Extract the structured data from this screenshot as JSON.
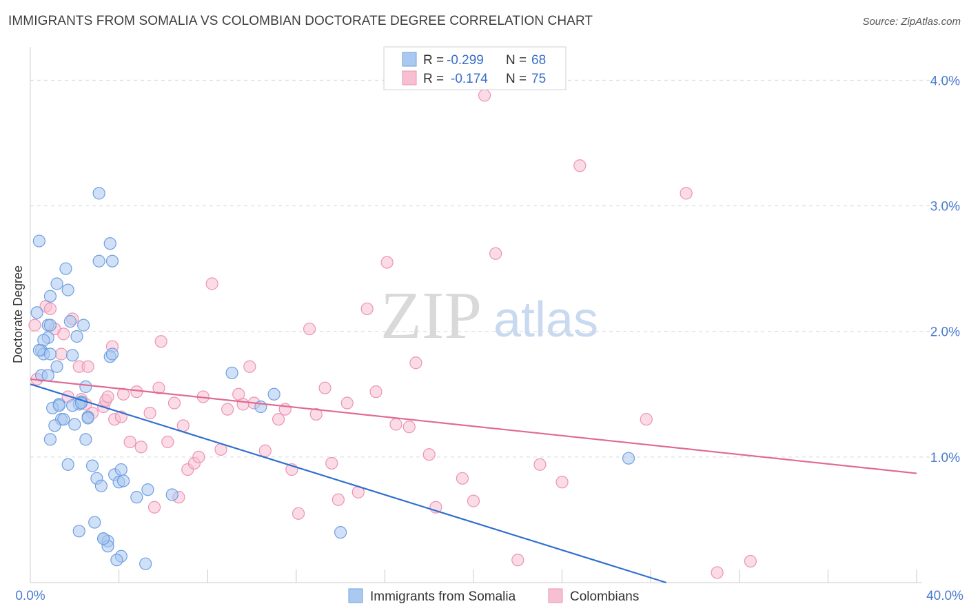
{
  "header": {
    "title": "IMMIGRANTS FROM SOMALIA VS COLOMBIAN DOCTORATE DEGREE CORRELATION CHART",
    "source": "Source: ZipAtlas.com"
  },
  "watermark": {
    "zip": "ZIP",
    "atlas": "atlas"
  },
  "colors": {
    "blue_fill": "#a9c9f0",
    "blue_stroke": "#6f9fe0",
    "blue_line": "#2f6fd0",
    "pink_fill": "#f7bfd2",
    "pink_stroke": "#ec93b3",
    "pink_line": "#e06a94",
    "grid": "#d8d8d8",
    "axis_label": "#4a7bd0"
  },
  "legend_top": {
    "rows": [
      {
        "r_label": "R =",
        "r_value": "-0.299",
        "n_label": "N =",
        "n_value": "68",
        "color": "blue"
      },
      {
        "r_label": "R =",
        "r_value": "-0.174",
        "n_label": "N =",
        "n_value": "75",
        "color": "pink"
      }
    ]
  },
  "legend_bottom": {
    "items": [
      {
        "label": "Immigrants from Somalia",
        "color": "blue"
      },
      {
        "label": "Colombians",
        "color": "pink"
      }
    ]
  },
  "chart_data": {
    "type": "scatter",
    "title": "IMMIGRANTS FROM SOMALIA VS COLOMBIAN DOCTORATE DEGREE CORRELATION CHART",
    "xlabel": "",
    "ylabel": "Doctorate Degree",
    "xlim": [
      0,
      40
    ],
    "ylim": [
      0,
      4.2
    ],
    "x_tick_labels": [
      "0.0%",
      "40.0%"
    ],
    "y_ticks": [
      1.0,
      2.0,
      3.0,
      4.0
    ],
    "y_tick_labels": [
      "1.0%",
      "2.0%",
      "3.0%",
      "4.0%"
    ],
    "grid": true,
    "legend_placement": "top-center and bottom",
    "series": [
      {
        "name": "Immigrants from Somalia",
        "color": "blue",
        "r": -0.299,
        "n": 68,
        "trend": {
          "x": [
            0,
            28.7
          ],
          "y": [
            1.58,
            0.0
          ]
        },
        "points": [
          [
            0.3,
            2.15
          ],
          [
            0.5,
            1.85
          ],
          [
            0.5,
            1.65
          ],
          [
            0.6,
            1.82
          ],
          [
            0.4,
            1.85
          ],
          [
            0.4,
            2.72
          ],
          [
            0.8,
            2.05
          ],
          [
            0.8,
            1.65
          ],
          [
            0.9,
            2.28
          ],
          [
            0.8,
            1.95
          ],
          [
            0.9,
            1.82
          ],
          [
            1.2,
            2.38
          ],
          [
            1.2,
            1.72
          ],
          [
            1.3,
            1.42
          ],
          [
            1.6,
            2.5
          ],
          [
            1.7,
            2.33
          ],
          [
            1.8,
            2.08
          ],
          [
            2.1,
            1.96
          ],
          [
            1.9,
            1.81
          ],
          [
            2.4,
            2.05
          ],
          [
            2.5,
            1.56
          ],
          [
            2.3,
            1.44
          ],
          [
            2.2,
            1.42
          ],
          [
            2.6,
            1.32
          ],
          [
            3.1,
            3.1
          ],
          [
            3.6,
            2.7
          ],
          [
            3.1,
            2.56
          ],
          [
            3.7,
            2.56
          ],
          [
            3.6,
            1.8
          ],
          [
            3.7,
            1.82
          ],
          [
            1.0,
            1.39
          ],
          [
            1.4,
            1.3
          ],
          [
            1.5,
            1.3
          ],
          [
            1.1,
            1.25
          ],
          [
            2.0,
            1.26
          ],
          [
            1.9,
            1.41
          ],
          [
            2.5,
            1.14
          ],
          [
            0.9,
            1.14
          ],
          [
            1.7,
            0.94
          ],
          [
            2.8,
            0.93
          ],
          [
            3.0,
            0.83
          ],
          [
            3.2,
            0.77
          ],
          [
            3.8,
            0.86
          ],
          [
            4.1,
            0.9
          ],
          [
            4.0,
            0.8
          ],
          [
            4.2,
            0.81
          ],
          [
            5.3,
            0.74
          ],
          [
            4.8,
            0.68
          ],
          [
            6.4,
            0.7
          ],
          [
            2.9,
            0.48
          ],
          [
            2.2,
            0.41
          ],
          [
            3.3,
            0.35
          ],
          [
            3.5,
            0.33
          ],
          [
            3.5,
            0.29
          ],
          [
            4.1,
            0.21
          ],
          [
            3.9,
            0.18
          ],
          [
            5.2,
            0.15
          ],
          [
            9.1,
            1.67
          ],
          [
            10.4,
            1.4
          ],
          [
            11.0,
            1.5
          ],
          [
            14.0,
            0.4
          ],
          [
            27.0,
            0.99
          ],
          [
            2.3,
            1.43
          ],
          [
            1.3,
            1.41
          ],
          [
            3.3,
            0.35
          ],
          [
            0.9,
            2.05
          ],
          [
            2.6,
            1.31
          ],
          [
            0.6,
            1.93
          ]
        ]
      },
      {
        "name": "Colombians",
        "color": "pink",
        "r": -0.174,
        "n": 75,
        "trend": {
          "x": [
            0,
            40
          ],
          "y": [
            1.62,
            0.87
          ]
        },
        "points": [
          [
            0.2,
            2.05
          ],
          [
            0.3,
            1.62
          ],
          [
            0.7,
            2.2
          ],
          [
            0.9,
            2.18
          ],
          [
            1.1,
            2.02
          ],
          [
            1.4,
            1.82
          ],
          [
            1.5,
            1.98
          ],
          [
            1.7,
            1.48
          ],
          [
            1.9,
            2.1
          ],
          [
            2.2,
            1.72
          ],
          [
            2.3,
            1.46
          ],
          [
            2.5,
            1.42
          ],
          [
            2.6,
            1.72
          ],
          [
            2.8,
            1.35
          ],
          [
            3.3,
            1.4
          ],
          [
            3.4,
            1.45
          ],
          [
            3.5,
            1.48
          ],
          [
            3.7,
            1.88
          ],
          [
            3.8,
            1.3
          ],
          [
            4.1,
            1.32
          ],
          [
            4.2,
            1.5
          ],
          [
            4.5,
            1.12
          ],
          [
            4.8,
            1.52
          ],
          [
            5.0,
            1.08
          ],
          [
            5.4,
            1.35
          ],
          [
            5.6,
            0.6
          ],
          [
            5.8,
            1.55
          ],
          [
            5.9,
            1.92
          ],
          [
            6.2,
            1.12
          ],
          [
            6.5,
            1.43
          ],
          [
            6.7,
            0.68
          ],
          [
            6.9,
            1.25
          ],
          [
            7.1,
            0.9
          ],
          [
            7.4,
            0.95
          ],
          [
            7.6,
            1.0
          ],
          [
            7.8,
            1.48
          ],
          [
            8.2,
            2.38
          ],
          [
            8.6,
            1.06
          ],
          [
            8.9,
            1.38
          ],
          [
            9.4,
            1.5
          ],
          [
            9.6,
            1.42
          ],
          [
            9.9,
            1.72
          ],
          [
            10.1,
            1.43
          ],
          [
            10.6,
            1.05
          ],
          [
            11.2,
            1.3
          ],
          [
            11.5,
            1.38
          ],
          [
            11.8,
            0.9
          ],
          [
            12.1,
            0.55
          ],
          [
            12.6,
            2.02
          ],
          [
            12.9,
            1.34
          ],
          [
            13.3,
            1.55
          ],
          [
            13.6,
            0.95
          ],
          [
            13.9,
            0.66
          ],
          [
            14.3,
            1.43
          ],
          [
            14.8,
            0.72
          ],
          [
            15.2,
            2.18
          ],
          [
            15.6,
            1.52
          ],
          [
            16.1,
            2.55
          ],
          [
            16.5,
            1.26
          ],
          [
            17.1,
            1.24
          ],
          [
            17.4,
            1.75
          ],
          [
            18.0,
            1.02
          ],
          [
            18.3,
            0.6
          ],
          [
            19.5,
            0.83
          ],
          [
            20.0,
            0.65
          ],
          [
            20.5,
            3.88
          ],
          [
            21.0,
            2.62
          ],
          [
            22.0,
            0.18
          ],
          [
            23.0,
            0.94
          ],
          [
            24.0,
            0.8
          ],
          [
            27.8,
            1.3
          ],
          [
            24.8,
            3.32
          ],
          [
            29.6,
            3.1
          ],
          [
            31.0,
            0.08
          ],
          [
            32.5,
            0.17
          ]
        ]
      }
    ]
  }
}
